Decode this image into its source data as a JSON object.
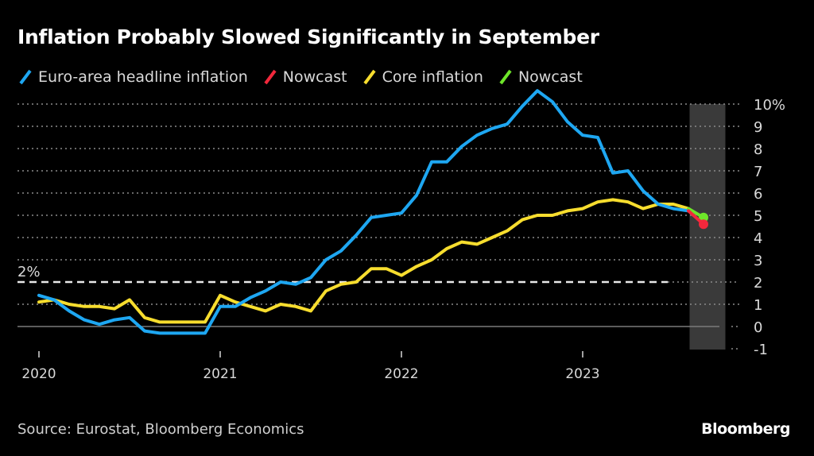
{
  "chart_data": {
    "type": "line",
    "title": "Inflation Probably Slowed Significantly in September",
    "xlabel": "",
    "ylabel": "",
    "ylim": [
      -1,
      10
    ],
    "yticks": [
      "-1",
      "0",
      "1",
      "2",
      "3",
      "4",
      "5",
      "6",
      "7",
      "8",
      "9",
      "10%"
    ],
    "ytick_values": [
      -1,
      0,
      1,
      2,
      3,
      4,
      5,
      6,
      7,
      8,
      9,
      10
    ],
    "xticks": [
      "2020",
      "2021",
      "2022",
      "2023"
    ],
    "xtick_month_index": [
      0,
      12,
      24,
      36
    ],
    "x_start": "Jan 2020",
    "x_unit": "month",
    "grid": true,
    "legend_position": "top-left",
    "reference_line": {
      "value": 2,
      "label": "2%",
      "style": "dashed"
    },
    "highlight_band": {
      "from_month_index": 43.5,
      "to_month_index": 45.5,
      "label": ""
    },
    "series": [
      {
        "name": "Euro-area headline inflation",
        "color": "#1ea7f2",
        "start_month_index": 0,
        "values": [
          1.4,
          1.2,
          0.7,
          0.3,
          0.1,
          0.3,
          0.4,
          -0.2,
          -0.3,
          -0.3,
          -0.3,
          -0.3,
          0.9,
          0.9,
          1.3,
          1.6,
          2.0,
          1.9,
          2.2,
          3.0,
          3.4,
          4.1,
          4.9,
          5.0,
          5.1,
          5.9,
          7.4,
          7.4,
          8.1,
          8.6,
          8.9,
          9.1,
          9.9,
          10.6,
          10.1,
          9.2,
          8.6,
          8.5,
          6.9,
          7.0,
          6.1,
          5.5,
          5.3,
          5.2
        ]
      },
      {
        "name": "Nowcast",
        "color": "#f2283c",
        "start_month_index": 43,
        "values": [
          5.2,
          4.6
        ],
        "marker_last": true
      },
      {
        "name": "Core inflation",
        "color": "#f7dd2e",
        "start_month_index": 0,
        "values": [
          1.1,
          1.2,
          1.0,
          0.9,
          0.9,
          0.8,
          1.2,
          0.4,
          0.2,
          0.2,
          0.2,
          0.2,
          1.4,
          1.1,
          0.9,
          0.7,
          1.0,
          0.9,
          0.7,
          1.6,
          1.9,
          2.0,
          2.6,
          2.6,
          2.3,
          2.7,
          3.0,
          3.5,
          3.8,
          3.7,
          4.0,
          4.3,
          4.8,
          5.0,
          5.0,
          5.2,
          5.3,
          5.6,
          5.7,
          5.6,
          5.3,
          5.5,
          5.5,
          5.3
        ]
      },
      {
        "name": "Nowcast",
        "color": "#6ee62a",
        "start_month_index": 43,
        "values": [
          5.3,
          4.9
        ],
        "marker_last": true
      }
    ]
  },
  "footer": {
    "source": "Source: Eurostat, Bloomberg Economics",
    "brand": "Bloomberg"
  },
  "colors": {
    "background": "#000000",
    "grid": "#8a8a8a",
    "band": "#3a3a3a",
    "zero_line": "#7a7a7a",
    "reference": "#e8e8e8"
  }
}
